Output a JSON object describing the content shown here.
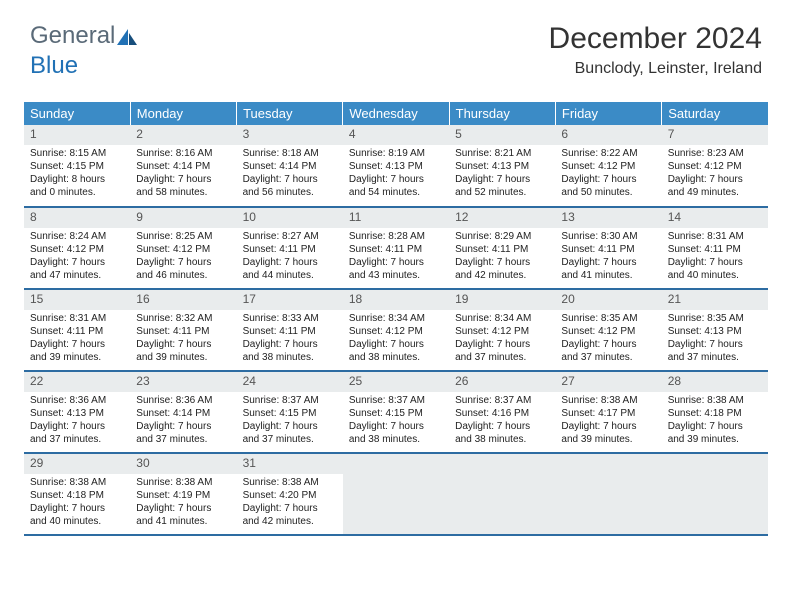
{
  "logo": {
    "part1": "General",
    "part2": "Blue"
  },
  "colors": {
    "header_bg": "#3b8bc6",
    "row_border": "#2d6ca2",
    "daynum_bg": "#e9eced",
    "logo_gray": "#5a6a78",
    "logo_blue": "#2171b5"
  },
  "header": {
    "month": "December 2024",
    "location": "Bunclody, Leinster, Ireland"
  },
  "weekdays": [
    "Sunday",
    "Monday",
    "Tuesday",
    "Wednesday",
    "Thursday",
    "Friday",
    "Saturday"
  ],
  "weeks": [
    [
      {
        "n": "1",
        "sr": "Sunrise: 8:15 AM",
        "ss": "Sunset: 4:15 PM",
        "d1": "Daylight: 8 hours",
        "d2": "and 0 minutes."
      },
      {
        "n": "2",
        "sr": "Sunrise: 8:16 AM",
        "ss": "Sunset: 4:14 PM",
        "d1": "Daylight: 7 hours",
        "d2": "and 58 minutes."
      },
      {
        "n": "3",
        "sr": "Sunrise: 8:18 AM",
        "ss": "Sunset: 4:14 PM",
        "d1": "Daylight: 7 hours",
        "d2": "and 56 minutes."
      },
      {
        "n": "4",
        "sr": "Sunrise: 8:19 AM",
        "ss": "Sunset: 4:13 PM",
        "d1": "Daylight: 7 hours",
        "d2": "and 54 minutes."
      },
      {
        "n": "5",
        "sr": "Sunrise: 8:21 AM",
        "ss": "Sunset: 4:13 PM",
        "d1": "Daylight: 7 hours",
        "d2": "and 52 minutes."
      },
      {
        "n": "6",
        "sr": "Sunrise: 8:22 AM",
        "ss": "Sunset: 4:12 PM",
        "d1": "Daylight: 7 hours",
        "d2": "and 50 minutes."
      },
      {
        "n": "7",
        "sr": "Sunrise: 8:23 AM",
        "ss": "Sunset: 4:12 PM",
        "d1": "Daylight: 7 hours",
        "d2": "and 49 minutes."
      }
    ],
    [
      {
        "n": "8",
        "sr": "Sunrise: 8:24 AM",
        "ss": "Sunset: 4:12 PM",
        "d1": "Daylight: 7 hours",
        "d2": "and 47 minutes."
      },
      {
        "n": "9",
        "sr": "Sunrise: 8:25 AM",
        "ss": "Sunset: 4:12 PM",
        "d1": "Daylight: 7 hours",
        "d2": "and 46 minutes."
      },
      {
        "n": "10",
        "sr": "Sunrise: 8:27 AM",
        "ss": "Sunset: 4:11 PM",
        "d1": "Daylight: 7 hours",
        "d2": "and 44 minutes."
      },
      {
        "n": "11",
        "sr": "Sunrise: 8:28 AM",
        "ss": "Sunset: 4:11 PM",
        "d1": "Daylight: 7 hours",
        "d2": "and 43 minutes."
      },
      {
        "n": "12",
        "sr": "Sunrise: 8:29 AM",
        "ss": "Sunset: 4:11 PM",
        "d1": "Daylight: 7 hours",
        "d2": "and 42 minutes."
      },
      {
        "n": "13",
        "sr": "Sunrise: 8:30 AM",
        "ss": "Sunset: 4:11 PM",
        "d1": "Daylight: 7 hours",
        "d2": "and 41 minutes."
      },
      {
        "n": "14",
        "sr": "Sunrise: 8:31 AM",
        "ss": "Sunset: 4:11 PM",
        "d1": "Daylight: 7 hours",
        "d2": "and 40 minutes."
      }
    ],
    [
      {
        "n": "15",
        "sr": "Sunrise: 8:31 AM",
        "ss": "Sunset: 4:11 PM",
        "d1": "Daylight: 7 hours",
        "d2": "and 39 minutes."
      },
      {
        "n": "16",
        "sr": "Sunrise: 8:32 AM",
        "ss": "Sunset: 4:11 PM",
        "d1": "Daylight: 7 hours",
        "d2": "and 39 minutes."
      },
      {
        "n": "17",
        "sr": "Sunrise: 8:33 AM",
        "ss": "Sunset: 4:11 PM",
        "d1": "Daylight: 7 hours",
        "d2": "and 38 minutes."
      },
      {
        "n": "18",
        "sr": "Sunrise: 8:34 AM",
        "ss": "Sunset: 4:12 PM",
        "d1": "Daylight: 7 hours",
        "d2": "and 38 minutes."
      },
      {
        "n": "19",
        "sr": "Sunrise: 8:34 AM",
        "ss": "Sunset: 4:12 PM",
        "d1": "Daylight: 7 hours",
        "d2": "and 37 minutes."
      },
      {
        "n": "20",
        "sr": "Sunrise: 8:35 AM",
        "ss": "Sunset: 4:12 PM",
        "d1": "Daylight: 7 hours",
        "d2": "and 37 minutes."
      },
      {
        "n": "21",
        "sr": "Sunrise: 8:35 AM",
        "ss": "Sunset: 4:13 PM",
        "d1": "Daylight: 7 hours",
        "d2": "and 37 minutes."
      }
    ],
    [
      {
        "n": "22",
        "sr": "Sunrise: 8:36 AM",
        "ss": "Sunset: 4:13 PM",
        "d1": "Daylight: 7 hours",
        "d2": "and 37 minutes."
      },
      {
        "n": "23",
        "sr": "Sunrise: 8:36 AM",
        "ss": "Sunset: 4:14 PM",
        "d1": "Daylight: 7 hours",
        "d2": "and 37 minutes."
      },
      {
        "n": "24",
        "sr": "Sunrise: 8:37 AM",
        "ss": "Sunset: 4:15 PM",
        "d1": "Daylight: 7 hours",
        "d2": "and 37 minutes."
      },
      {
        "n": "25",
        "sr": "Sunrise: 8:37 AM",
        "ss": "Sunset: 4:15 PM",
        "d1": "Daylight: 7 hours",
        "d2": "and 38 minutes."
      },
      {
        "n": "26",
        "sr": "Sunrise: 8:37 AM",
        "ss": "Sunset: 4:16 PM",
        "d1": "Daylight: 7 hours",
        "d2": "and 38 minutes."
      },
      {
        "n": "27",
        "sr": "Sunrise: 8:38 AM",
        "ss": "Sunset: 4:17 PM",
        "d1": "Daylight: 7 hours",
        "d2": "and 39 minutes."
      },
      {
        "n": "28",
        "sr": "Sunrise: 8:38 AM",
        "ss": "Sunset: 4:18 PM",
        "d1": "Daylight: 7 hours",
        "d2": "and 39 minutes."
      }
    ],
    [
      {
        "n": "29",
        "sr": "Sunrise: 8:38 AM",
        "ss": "Sunset: 4:18 PM",
        "d1": "Daylight: 7 hours",
        "d2": "and 40 minutes."
      },
      {
        "n": "30",
        "sr": "Sunrise: 8:38 AM",
        "ss": "Sunset: 4:19 PM",
        "d1": "Daylight: 7 hours",
        "d2": "and 41 minutes."
      },
      {
        "n": "31",
        "sr": "Sunrise: 8:38 AM",
        "ss": "Sunset: 4:20 PM",
        "d1": "Daylight: 7 hours",
        "d2": "and 42 minutes."
      },
      {
        "empty": true
      },
      {
        "empty": true
      },
      {
        "empty": true
      },
      {
        "empty": true
      }
    ]
  ]
}
